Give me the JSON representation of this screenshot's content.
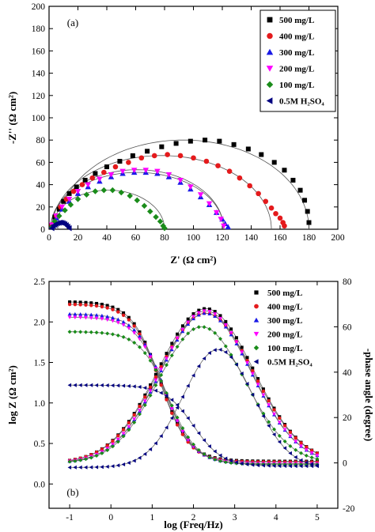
{
  "chart_data": [
    {
      "type": "scatter",
      "panel_label": "(a)",
      "xlabel": "Z' (Ω cm²)",
      "ylabel": "-Z'' (Ω cm²)",
      "xlim": [
        0,
        200
      ],
      "ylim": [
        0,
        200
      ],
      "xticks": [
        0,
        20,
        40,
        60,
        80,
        100,
        120,
        140,
        160,
        180,
        200
      ],
      "yticks": [
        0,
        20,
        40,
        60,
        80,
        100,
        120,
        140,
        160,
        180,
        200
      ],
      "legend_position": "top-right",
      "series": [
        {
          "name": "500 mg/L",
          "marker": "square",
          "color": "#000000",
          "fit": {
            "center": 93,
            "radius": 87,
            "dip": 0.92
          },
          "x": [
            2,
            4,
            7,
            10,
            14,
            19,
            25,
            32,
            40,
            49,
            58,
            68,
            78,
            88,
            98,
            108,
            118,
            128,
            138,
            147,
            156,
            163,
            169,
            174,
            177,
            179,
            180
          ],
          "y": [
            3,
            11,
            18,
            25,
            32,
            38,
            44,
            50,
            56,
            61,
            66,
            70,
            74,
            77,
            79,
            80,
            79,
            76,
            72,
            67,
            60,
            53,
            44,
            35,
            26,
            16,
            6
          ]
        },
        {
          "name": "400 mg/L",
          "marker": "circle",
          "color": "#e41a1c",
          "fit": {
            "center": 78,
            "radius": 76,
            "dip": 0.87
          },
          "x": [
            2,
            5,
            8,
            12,
            17,
            23,
            30,
            38,
            46,
            55,
            64,
            73,
            82,
            91,
            100,
            109,
            117,
            125,
            132,
            139,
            145,
            150,
            154,
            157,
            160,
            162,
            163
          ],
          "y": [
            4,
            12,
            20,
            27,
            34,
            40,
            46,
            51,
            56,
            60,
            64,
            66,
            67,
            66,
            64,
            61,
            57,
            52,
            46,
            39,
            32,
            25,
            19,
            14,
            10,
            6,
            3
          ]
        },
        {
          "name": "300 mg/L",
          "marker": "triangle-up",
          "color": "#1a1ae6",
          "fit": {
            "center": 61,
            "radius": 60,
            "dip": 0.85
          },
          "x": [
            2,
            5,
            9,
            14,
            20,
            27,
            35,
            43,
            51,
            59,
            67,
            75,
            83,
            91,
            98,
            105,
            111,
            116,
            120,
            122,
            124
          ],
          "y": [
            3,
            10,
            18,
            25,
            32,
            38,
            43,
            47,
            50,
            51,
            51,
            50,
            47,
            42,
            36,
            29,
            22,
            15,
            9,
            5,
            2
          ]
        },
        {
          "name": "200 mg/L",
          "marker": "triangle-down",
          "color": "#ff00ff",
          "fit": {
            "center": 61,
            "radius": 60,
            "dip": 0.89
          },
          "x": [
            2,
            5,
            9,
            14,
            20,
            27,
            35,
            43,
            51,
            59,
            67,
            75,
            83,
            91,
            98,
            105,
            111,
            116,
            119,
            121
          ],
          "y": [
            4,
            12,
            20,
            27,
            34,
            40,
            45,
            49,
            52,
            53,
            53,
            52,
            49,
            44,
            38,
            31,
            23,
            15,
            9,
            3
          ]
        },
        {
          "name": "100 mg/L",
          "marker": "diamond",
          "color": "#1a8c1a",
          "fit": {
            "center": 41,
            "radius": 39,
            "dip": 0.9
          },
          "x": [
            2,
            4,
            7,
            11,
            15,
            20,
            26,
            32,
            38,
            44,
            50,
            56,
            61,
            66,
            70,
            74,
            77,
            79,
            80
          ],
          "y": [
            2,
            7,
            12,
            17,
            22,
            27,
            31,
            34,
            35,
            35,
            33,
            30,
            26,
            21,
            16,
            11,
            7,
            3,
            1
          ]
        },
        {
          "name": "0.5M H₂SO₄",
          "marker": "triangle-left",
          "color": "#000080",
          "fit": {
            "center": 8,
            "radius": 6.5,
            "dip": 0.9
          },
          "x": [
            2,
            3,
            4,
            5,
            6,
            7,
            8,
            9,
            10,
            11,
            12,
            13,
            14
          ],
          "y": [
            1,
            3,
            4,
            5,
            5.5,
            5.8,
            6,
            5.8,
            5.3,
            4.6,
            3.6,
            2.4,
            1
          ]
        }
      ]
    },
    {
      "type": "scatter",
      "panel_label": "(b)",
      "xlabel": "log (Freq/Hz)",
      "ylabel": "log Z (Ω cm²)",
      "ylabel_right": "-phase angle (degree)",
      "xlim": [
        -1.5,
        5.5
      ],
      "ylim": [
        -0.3,
        2.5
      ],
      "ylim_right": [
        -20,
        80
      ],
      "xticks": [
        -1,
        0,
        1,
        2,
        3,
        4,
        5
      ],
      "yticks": [
        0.0,
        0.5,
        1.0,
        1.5,
        2.0,
        2.5
      ],
      "yticks_labels": [
        "0.0",
        "0.5",
        "1.0",
        "1.5",
        "2.0",
        "2.5"
      ],
      "yticks_right": [
        -20,
        0,
        20,
        40,
        60,
        80
      ],
      "legend_position": "top-right",
      "bode_magnitude": [
        {
          "name": "500 mg/L",
          "marker": "square",
          "color": "#000000",
          "high": 2.25,
          "low": 0.28,
          "fc": 1.2
        },
        {
          "name": "400 mg/L",
          "marker": "circle",
          "color": "#e41a1c",
          "high": 2.22,
          "low": 0.27,
          "fc": 1.2
        },
        {
          "name": "300 mg/L",
          "marker": "triangle-up",
          "color": "#1a1ae6",
          "high": 2.1,
          "low": 0.25,
          "fc": 1.3
        },
        {
          "name": "200 mg/L",
          "marker": "triangle-down",
          "color": "#ff00ff",
          "high": 2.06,
          "low": 0.25,
          "fc": 1.3
        },
        {
          "name": "100 mg/L",
          "marker": "diamond",
          "color": "#1a8c1a",
          "high": 1.88,
          "low": 0.24,
          "fc": 1.4
        },
        {
          "name": "0.5M H₂SO₄",
          "marker": "triangle-left",
          "color": "#000080",
          "high": 1.22,
          "low": 0.22,
          "fc": 2.0
        }
      ],
      "bode_phase": [
        {
          "name": "500 mg/L",
          "marker": "square",
          "color": "#000000",
          "peak": 68,
          "center": 2.3,
          "width": 1.15
        },
        {
          "name": "400 mg/L",
          "marker": "circle",
          "color": "#e41a1c",
          "peak": 66,
          "center": 2.3,
          "width": 1.15
        },
        {
          "name": "300 mg/L",
          "marker": "triangle-up",
          "color": "#1a1ae6",
          "peak": 66,
          "center": 2.3,
          "width": 1.1
        },
        {
          "name": "200 mg/L",
          "marker": "triangle-down",
          "color": "#ff00ff",
          "peak": 67,
          "center": 2.3,
          "width": 1.1
        },
        {
          "name": "100 mg/L",
          "marker": "diamond",
          "color": "#1a8c1a",
          "peak": 60,
          "center": 2.2,
          "width": 1.05
        },
        {
          "name": "0.5M H₂SO₄",
          "marker": "triangle-left",
          "color": "#000080",
          "peak": 52,
          "center": 2.6,
          "width": 0.85
        }
      ]
    }
  ]
}
